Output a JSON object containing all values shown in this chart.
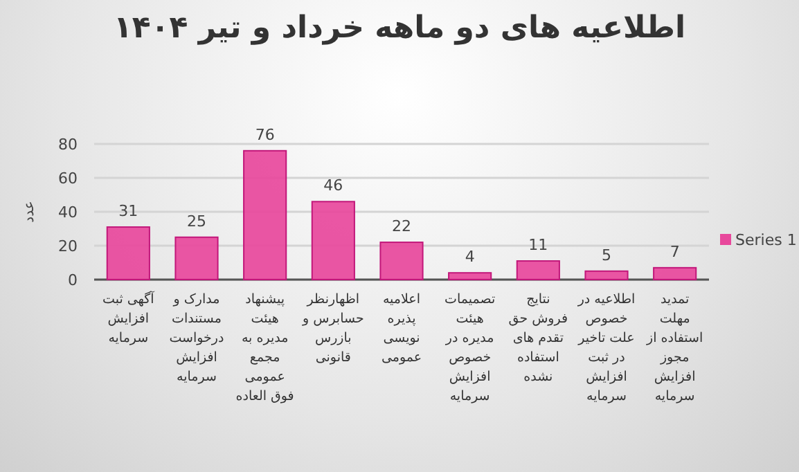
{
  "chart_data": {
    "type": "bar",
    "title": "اطلاعیه های دو ماهه خرداد و تیر ۱۴۰۴",
    "ylabel": "عدد",
    "categories": [
      "آگهی ثبت افزایش سرمایه",
      "مدارک و مستندات درخواست افزایش سرمایه",
      "پیشنهاد هیئت مدیره به مجمع عمومی فوق العاده",
      "اظهارنظر حسابرس و بازرس قانونی",
      "اعلامیه پذیره نویسی عمومی",
      "تصمیمات هیئت مدیره در خصوص افزایش سرمایه",
      "نتایج فروش حق تقدم های استفاده نشده",
      "اطلاعیه در خصوص علت تاخیر در ثبت افزایش سرمایه",
      "تمدید مهلت استفاده از مجوز افزایش سرمایه"
    ],
    "series": [
      {
        "name": "Series 1",
        "color": "#e8489c",
        "values": [
          31,
          25,
          76,
          46,
          22,
          4,
          11,
          5,
          7
        ]
      }
    ],
    "ylim": [
      0,
      80
    ],
    "yticks": [
      0,
      20,
      40,
      60,
      80
    ],
    "grid": "y",
    "legend": "right",
    "data_labels": true
  }
}
